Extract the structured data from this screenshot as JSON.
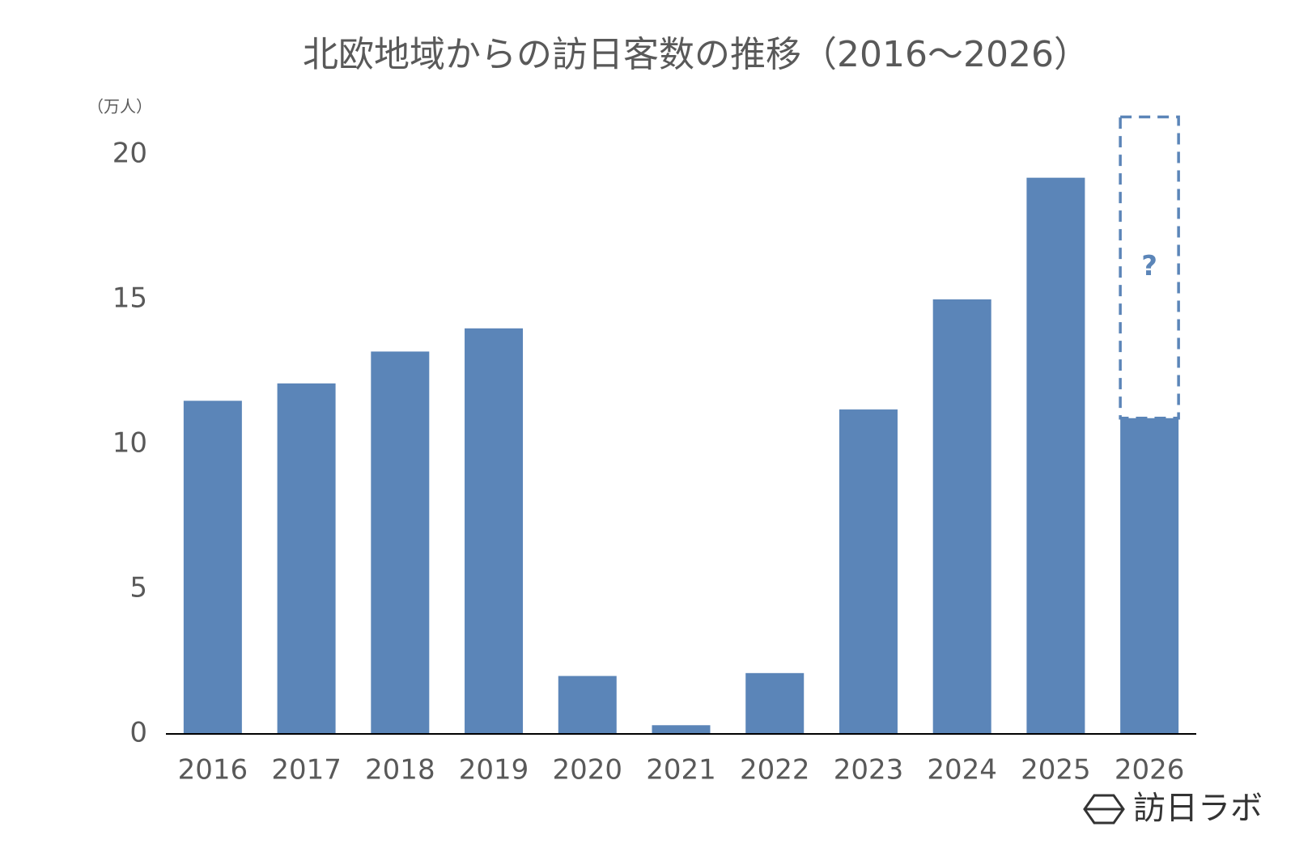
{
  "chart_data": {
    "type": "bar",
    "title": "北欧地域からの訪日客数の推移（2016～2026）",
    "y_unit": "（万人）",
    "categories": [
      "2016",
      "2017",
      "2018",
      "2019",
      "2020",
      "2021",
      "2022",
      "2023",
      "2024",
      "2025",
      "2026"
    ],
    "values": [
      11.5,
      12.1,
      13.2,
      14.0,
      2.0,
      0.3,
      2.1,
      11.2,
      15.0,
      19.2,
      10.9
    ],
    "color": "#5b85b8",
    "projection": {
      "values": [
        null,
        null,
        null,
        null,
        null,
        null,
        null,
        null,
        null,
        null,
        21.3
      ],
      "annotation": "?",
      "color": "#5b85b8"
    },
    "ylim": [
      0,
      20
    ],
    "yticks": [
      0,
      5,
      10,
      15,
      20
    ],
    "grid": false,
    "logo": "訪日ラボ"
  }
}
